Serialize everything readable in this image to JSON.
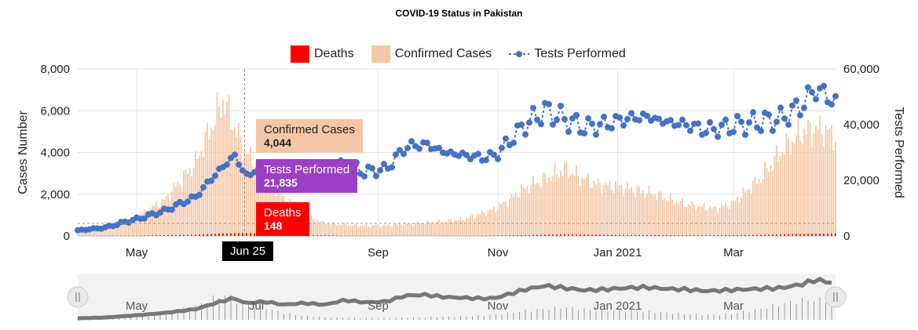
{
  "chart_data": {
    "type": "bar",
    "title": "COVID-19 Status in Pakistan",
    "ylabel_left": "Cases Number",
    "ylabel_right": "Tests Performed",
    "ylim_left": [
      0,
      8000
    ],
    "ylim_right": [
      0,
      60000
    ],
    "yticks_left": [
      "0",
      "2,000",
      "4,000",
      "6,000",
      "8,000"
    ],
    "yticks_right": [
      "0",
      "20,000",
      "40,000",
      "60,000"
    ],
    "x_range": [
      "2020-04-01",
      "2021-04-22"
    ],
    "xticks": [
      {
        "date": "2020-05-01",
        "label": "May"
      },
      {
        "date": "2020-09-01",
        "label": "Sep"
      },
      {
        "date": "2020-11-01",
        "label": "Nov"
      },
      {
        "date": "2021-01-01",
        "label": "Jan 2021"
      },
      {
        "date": "2021-03-01",
        "label": "Mar"
      }
    ],
    "navigator_labels": [
      {
        "date": "2020-05-01",
        "label": "May"
      },
      {
        "date": "2020-07-01",
        "label": "Jul"
      },
      {
        "date": "2020-09-01",
        "label": "Sep"
      },
      {
        "date": "2020-11-01",
        "label": "Nov"
      },
      {
        "date": "2021-01-01",
        "label": "Jan 2021"
      },
      {
        "date": "2021-03-01",
        "label": "Mar"
      }
    ],
    "legend_placement": "top-center",
    "grid": true,
    "series": [
      {
        "name": "Deaths",
        "type": "bar",
        "axis": "left",
        "color": "#ff0000",
        "points": [
          [
            "2020-04-01",
            5
          ],
          [
            "2020-05-01",
            20
          ],
          [
            "2020-06-01",
            60
          ],
          [
            "2020-06-14",
            130
          ],
          [
            "2020-06-25",
            148
          ],
          [
            "2020-07-15",
            60
          ],
          [
            "2020-08-15",
            15
          ],
          [
            "2020-09-15",
            5
          ],
          [
            "2020-10-15",
            10
          ],
          [
            "2020-11-15",
            40
          ],
          [
            "2020-12-01",
            70
          ],
          [
            "2020-12-15",
            60
          ],
          [
            "2021-01-15",
            40
          ],
          [
            "2021-02-15",
            30
          ],
          [
            "2021-03-15",
            50
          ],
          [
            "2021-04-10",
            110
          ],
          [
            "2021-04-22",
            120
          ]
        ]
      },
      {
        "name": "Confirmed Cases",
        "type": "bar",
        "axis": "left",
        "color": "#f5c6a5",
        "points": [
          [
            "2020-04-01",
            200
          ],
          [
            "2020-04-15",
            400
          ],
          [
            "2020-05-01",
            900
          ],
          [
            "2020-05-15",
            1700
          ],
          [
            "2020-05-31",
            3500
          ],
          [
            "2020-06-07",
            5000
          ],
          [
            "2020-06-14",
            6500
          ],
          [
            "2020-06-20",
            5200
          ],
          [
            "2020-06-25",
            4044
          ],
          [
            "2020-07-05",
            3000
          ],
          [
            "2020-07-15",
            1800
          ],
          [
            "2020-07-25",
            1000
          ],
          [
            "2020-08-05",
            600
          ],
          [
            "2020-08-20",
            500
          ],
          [
            "2020-09-05",
            500
          ],
          [
            "2020-09-20",
            600
          ],
          [
            "2020-10-05",
            700
          ],
          [
            "2020-10-15",
            800
          ],
          [
            "2020-10-31",
            1300
          ],
          [
            "2020-11-15",
            2300
          ],
          [
            "2020-12-01",
            3000
          ],
          [
            "2020-12-05",
            3200
          ],
          [
            "2020-12-20",
            2500
          ],
          [
            "2021-01-05",
            2300
          ],
          [
            "2021-01-20",
            2000
          ],
          [
            "2021-02-05",
            1500
          ],
          [
            "2021-02-20",
            1300
          ],
          [
            "2021-03-01",
            1600
          ],
          [
            "2021-03-15",
            2800
          ],
          [
            "2021-03-25",
            4000
          ],
          [
            "2021-04-05",
            5000
          ],
          [
            "2021-04-15",
            5100
          ],
          [
            "2021-04-22",
            4800
          ]
        ]
      },
      {
        "name": "Tests Performed",
        "type": "line",
        "axis": "right",
        "color": "#4472c4",
        "points": [
          [
            "2020-04-01",
            2000
          ],
          [
            "2020-04-15",
            3000
          ],
          [
            "2020-04-25",
            5000
          ],
          [
            "2020-05-01",
            6000
          ],
          [
            "2020-05-15",
            9000
          ],
          [
            "2020-05-31",
            14000
          ],
          [
            "2020-06-10",
            22000
          ],
          [
            "2020-06-20",
            29000
          ],
          [
            "2020-06-25",
            21835
          ],
          [
            "2020-07-05",
            24000
          ],
          [
            "2020-07-15",
            20000
          ],
          [
            "2020-07-25",
            22000
          ],
          [
            "2020-08-05",
            20000
          ],
          [
            "2020-08-15",
            26000
          ],
          [
            "2020-08-25",
            23000
          ],
          [
            "2020-09-05",
            24000
          ],
          [
            "2020-09-15",
            32000
          ],
          [
            "2020-09-25",
            33000
          ],
          [
            "2020-10-05",
            30000
          ],
          [
            "2020-10-15",
            29000
          ],
          [
            "2020-10-25",
            28000
          ],
          [
            "2020-10-31",
            29000
          ],
          [
            "2020-11-15",
            40000
          ],
          [
            "2020-11-25",
            45000
          ],
          [
            "2020-12-05",
            42000
          ],
          [
            "2020-12-15",
            39000
          ],
          [
            "2020-12-25",
            40000
          ],
          [
            "2021-01-05",
            42000
          ],
          [
            "2021-01-15",
            43000
          ],
          [
            "2021-01-25",
            41000
          ],
          [
            "2021-02-05",
            40000
          ],
          [
            "2021-02-15",
            38000
          ],
          [
            "2021-02-25",
            39000
          ],
          [
            "2021-03-05",
            40000
          ],
          [
            "2021-03-15",
            41000
          ],
          [
            "2021-03-25",
            42000
          ],
          [
            "2021-04-05",
            47000
          ],
          [
            "2021-04-12",
            53000
          ],
          [
            "2021-04-22",
            48000
          ]
        ]
      }
    ],
    "tooltip": {
      "date_label": "Jun 25",
      "items": [
        {
          "label": "Confirmed Cases",
          "value": "4,044"
        },
        {
          "label": "Tests Performed",
          "value": "21,835"
        },
        {
          "label": "Deaths",
          "value": "148"
        }
      ]
    }
  },
  "colors": {
    "deaths": "#ff0000",
    "confirmed": "#f5c6a5",
    "tests": "#4472c4",
    "tooltip_confirmed_bg": "#f5c6a5",
    "tooltip_tests_bg": "#9b3fc4",
    "tooltip_deaths_bg": "#ff0000",
    "navigator_line": "#777777",
    "navigator_bg": "#f2f2f2"
  },
  "navigator": {
    "handle_left_icon": "pause-icon",
    "handle_right_icon": "pause-icon"
  }
}
